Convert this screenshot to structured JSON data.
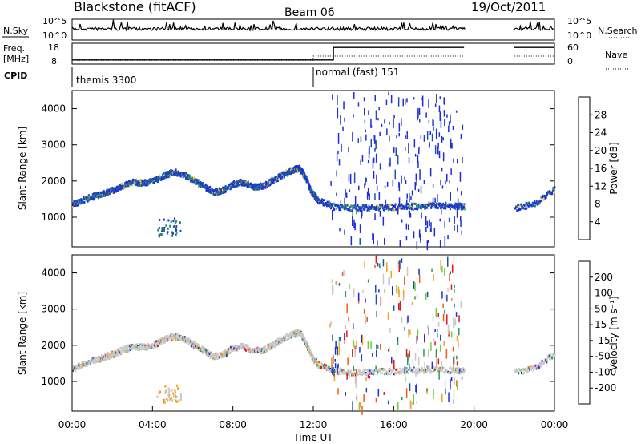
{
  "header": {
    "station": "Blackstone (fitACF)",
    "beam": "Beam 06",
    "date": "19/Oct/2011"
  },
  "side_labels": {
    "nsky": "N.Sky",
    "nsearch": "N.Search",
    "freq_line1": "Freq.",
    "freq_line2": "[MHz]",
    "nave": "Nave",
    "cpid": "CPID"
  },
  "colors": {
    "power_scale": [
      "#1f2fd8",
      "#1d52a8",
      "#2b7f7a",
      "#3aa56a",
      "#f0c21a",
      "#f39a1a",
      "#f15a14",
      "#e01a1a"
    ],
    "velocity_scale": [
      "#e01a1a",
      "#f25b14",
      "#f3a020",
      "#c8c8c8",
      "#c8c8c8",
      "#6ed23a",
      "#2e9a58",
      "#1d52a8",
      "#1f2fd8"
    ]
  },
  "chart_data": [
    {
      "type": "line",
      "name": "noise",
      "left_ticks": [
        "10^5",
        "10^0"
      ],
      "right_ticks": [
        "10^5",
        "10^0"
      ],
      "series": [
        {
          "name": "N.Sky",
          "style": "solid"
        },
        {
          "name": "N.Search",
          "style": "dotted"
        }
      ]
    },
    {
      "type": "line",
      "name": "frequency-nave",
      "left_ticks": [
        "18",
        "8"
      ],
      "right_ticks": [
        "60",
        "0"
      ],
      "series": [
        {
          "name": "Freq.",
          "style": "solid",
          "points": [
            [
              "00:00",
              10
            ],
            [
              "13:00",
              10
            ],
            [
              "13:00",
              16
            ],
            [
              "19:30",
              16
            ]
          ]
        },
        {
          "name": "Nave",
          "style": "dotted",
          "points": [
            [
              "00:00",
              11
            ],
            [
              "12:00",
              11
            ],
            [
              "12:00",
              23
            ],
            [
              "19:30",
              23
            ]
          ]
        }
      ]
    },
    {
      "type": "table",
      "name": "cpid",
      "segments": [
        {
          "label": "themis 3300",
          "start": "00:00",
          "end": "12:00"
        },
        {
          "label": "normal (fast) 151",
          "start": "12:00",
          "end": "24:00"
        }
      ]
    },
    {
      "type": "heatmap",
      "name": "power",
      "ylabel": "Slant Range [km]",
      "yticks": [
        1000,
        2000,
        3000,
        4000
      ],
      "ylim": [
        180,
        4500
      ],
      "xlim": [
        "00:00",
        "24:00"
      ],
      "colorbar": {
        "label": "Power [dB]",
        "ticks": [
          4,
          8,
          12,
          16,
          20,
          24,
          28
        ],
        "range": [
          0,
          32
        ]
      },
      "scatter_trace": {
        "x_hours": [
          0,
          0.5,
          1,
          1.5,
          2,
          2.5,
          3,
          3.5,
          4,
          4.5,
          5,
          5.5,
          6,
          6.5,
          7,
          7.5,
          8,
          8.5,
          9,
          9.5,
          10,
          10.5,
          11,
          11.3,
          11.6,
          11.9,
          12.2,
          13,
          14,
          15,
          16,
          17,
          18,
          19,
          19.5,
          22,
          23,
          24
        ],
        "range_km": [
          1380,
          1500,
          1600,
          1680,
          1780,
          1900,
          2000,
          1980,
          2020,
          2170,
          2280,
          2220,
          2050,
          1900,
          1720,
          1780,
          1950,
          2000,
          1870,
          1900,
          2060,
          2210,
          2350,
          2380,
          2100,
          1700,
          1500,
          1320,
          1280,
          1300,
          1310,
          1330,
          1360,
          1330,
          1330,
          1280,
          1400,
          1800
        ]
      },
      "x_ticks": [
        "00:00",
        "04:00",
        "08:00",
        "12:00",
        "16:00",
        "20:00",
        "00:00"
      ]
    },
    {
      "type": "heatmap",
      "name": "velocity",
      "ylabel": "Slant Range [km]",
      "yticks": [
        1000,
        2000,
        3000,
        4000
      ],
      "ylim": [
        180,
        4500
      ],
      "colorbar": {
        "label": "Velocity [m s⁻¹]",
        "ticks": [
          200,
          100,
          50,
          15,
          -15,
          -50,
          -100,
          -200
        ]
      },
      "xlabel": "Time UT",
      "x_ticks": [
        "00:00",
        "04:00",
        "08:00",
        "12:00",
        "16:00",
        "20:00",
        "00:00"
      ]
    }
  ]
}
